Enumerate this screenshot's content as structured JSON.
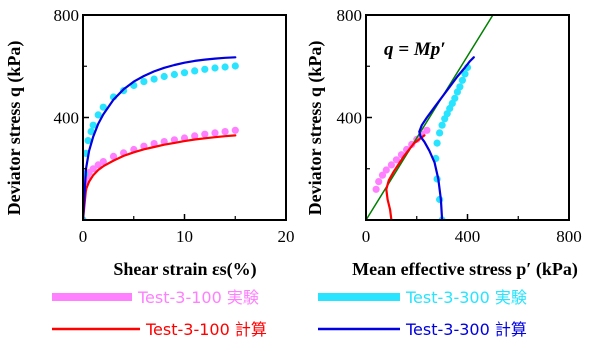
{
  "chart_data": [
    {
      "type": "line",
      "ylabel": "Deviator stress  q (kPa)",
      "xlabel": "Shear strain  εs(%)",
      "xlim": [
        0,
        20
      ],
      "ylim": [
        0,
        800
      ],
      "xticks": [
        "0",
        "10",
        "20"
      ],
      "yticks": [
        "400",
        "800"
      ],
      "series": [
        {
          "name": "Test-3-100 実験",
          "style": "marker",
          "color": "#ff80ff",
          "x": [
            0,
            0.1,
            0.2,
            0.4,
            0.6,
            1,
            1.5,
            2,
            3,
            4,
            5,
            6,
            7,
            8,
            9,
            10,
            11,
            12,
            13,
            14,
            15
          ],
          "y": [
            0,
            120,
            150,
            170,
            185,
            200,
            215,
            228,
            248,
            262,
            275,
            288,
            298,
            306,
            313,
            320,
            328,
            335,
            340,
            345,
            350
          ]
        },
        {
          "name": "Test-3-300 実験",
          "style": "marker",
          "color": "#28e4ff",
          "x": [
            0,
            0.15,
            0.3,
            0.5,
            0.8,
            1,
            1.5,
            2,
            3,
            4,
            5,
            6,
            7,
            8,
            9,
            10,
            11,
            12,
            13,
            14,
            15
          ],
          "y": [
            0,
            180,
            260,
            310,
            345,
            370,
            410,
            440,
            480,
            505,
            525,
            540,
            550,
            560,
            568,
            575,
            582,
            588,
            593,
            597,
            601
          ]
        },
        {
          "name": "Test-3-100 計算",
          "style": "line",
          "color": "#ff0000",
          "x": [
            0,
            0.3,
            0.6,
            1,
            1.5,
            2,
            3,
            4,
            5,
            6,
            7,
            8,
            9,
            10,
            11,
            12,
            13,
            14,
            15
          ],
          "y": [
            0,
            120,
            150,
            175,
            195,
            210,
            232,
            250,
            264,
            276,
            285,
            294,
            301,
            308,
            314,
            319,
            323,
            327,
            330
          ]
        },
        {
          "name": "Test-3-300 計算",
          "style": "line",
          "color": "#0000e0",
          "x": [
            0,
            0.3,
            0.6,
            1,
            1.5,
            2,
            3,
            4,
            5,
            6,
            7,
            8,
            9,
            10,
            11,
            12,
            13,
            14,
            15
          ],
          "y": [
            0,
            200,
            270,
            325,
            375,
            412,
            470,
            510,
            540,
            562,
            580,
            594,
            605,
            614,
            621,
            626,
            630,
            633,
            635
          ]
        }
      ]
    },
    {
      "type": "line",
      "ylabel": "Deviator stress  q (kPa)",
      "xlabel": "Mean effective stress  p′ (kPa)",
      "xlim": [
        0,
        800
      ],
      "ylim": [
        0,
        800
      ],
      "xticks": [
        "0",
        "400",
        "800"
      ],
      "yticks": [
        "400",
        "800"
      ],
      "annotation": "q = Mp′",
      "series": [
        {
          "name": "q = Mp′",
          "style": "line",
          "color": "#008000",
          "x": [
            0,
            500
          ],
          "y": [
            0,
            800
          ]
        },
        {
          "name": "Test-3-100 実験",
          "style": "marker",
          "color": "#ff80ff",
          "x": [
            40,
            50,
            65,
            80,
            100,
            120,
            140,
            160,
            180,
            200,
            220,
            240
          ],
          "y": [
            120,
            150,
            175,
            195,
            215,
            235,
            255,
            275,
            295,
            315,
            335,
            350
          ]
        },
        {
          "name": "Test-3-300 実験",
          "style": "marker",
          "color": "#28e4ff",
          "x": [
            300,
            290,
            280,
            275,
            280,
            290,
            300,
            310,
            320,
            330,
            340,
            350,
            360,
            370,
            380,
            390,
            400
          ],
          "y": [
            0,
            80,
            160,
            240,
            300,
            340,
            370,
            395,
            415,
            435,
            455,
            475,
            500,
            520,
            545,
            570,
            595
          ]
        },
        {
          "name": "Test-3-100 計算",
          "style": "line",
          "color": "#ff0000",
          "x": [
            100,
            95,
            85,
            80,
            90,
            110,
            130,
            150,
            170,
            190,
            210,
            230
          ],
          "y": [
            0,
            40,
            80,
            120,
            155,
            190,
            220,
            250,
            275,
            300,
            315,
            330
          ]
        },
        {
          "name": "Test-3-300 計算",
          "style": "line",
          "color": "#0000e0",
          "x": [
            300,
            295,
            285,
            270,
            250,
            230,
            215,
            210,
            220,
            240,
            270,
            300,
            330,
            360,
            390,
            410,
            425
          ],
          "y": [
            0,
            80,
            160,
            225,
            270,
            305,
            325,
            345,
            370,
            400,
            440,
            480,
            520,
            560,
            595,
            620,
            635
          ]
        }
      ]
    }
  ],
  "legend": [
    {
      "label": "Test-3-100 実験",
      "color": "#ff80ff",
      "style": "marker"
    },
    {
      "label": "Test-3-300 実験",
      "color": "#28e4ff",
      "style": "marker"
    },
    {
      "label": "Test-3-100 計算",
      "color": "#ff0000",
      "style": "line"
    },
    {
      "label": "Test-3-300 計算",
      "color": "#0000e0",
      "style": "line"
    }
  ],
  "colors": {
    "pink_markers": "#ff80ff",
    "cyan_markers": "#28e4ff",
    "red_line": "#ff0000",
    "blue_line": "#0000e0",
    "green_line": "#008000"
  }
}
